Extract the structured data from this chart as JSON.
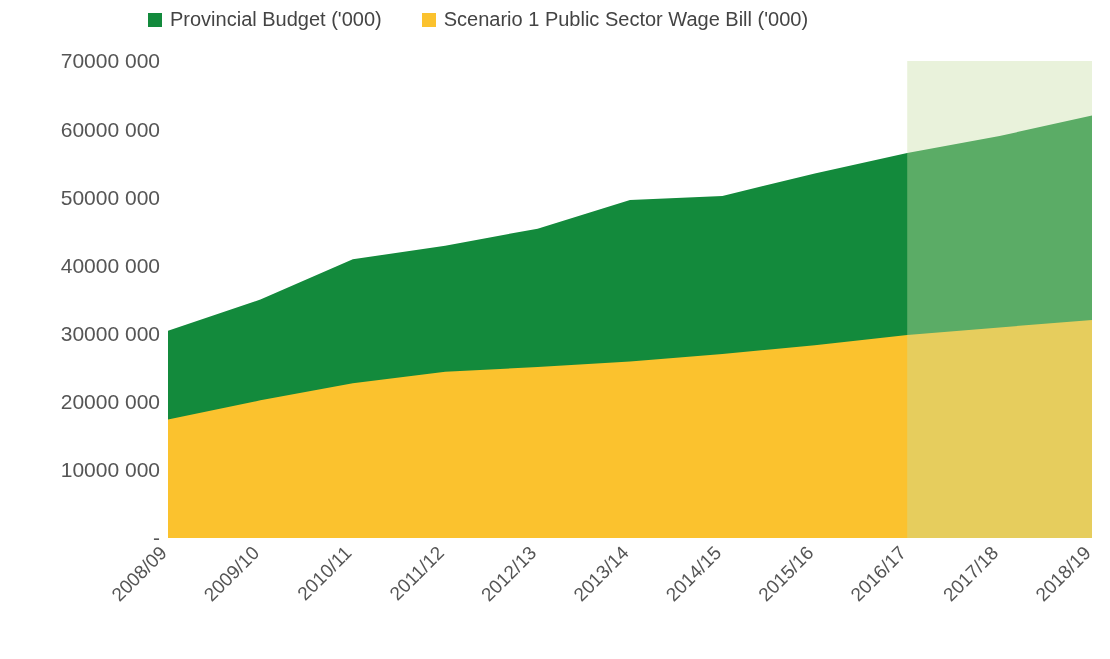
{
  "chart_data": {
    "type": "area",
    "categories": [
      "2008/09",
      "2009/10",
      "2010/11",
      "2011/12",
      "2012/13",
      "2013/14",
      "2014/15",
      "2015/16",
      "2016/17",
      "2017/18",
      "2018/19"
    ],
    "series": [
      {
        "name": "Provincial Budget  ('000)",
        "color": "#138a3c",
        "values": [
          30400000,
          35000000,
          40900000,
          42900000,
          45400000,
          49600000,
          50200000,
          53500000,
          56500000,
          59000000,
          62000000
        ]
      },
      {
        "name": "Scenario 1 Public Sector Wage Bill ('000)",
        "color": "#fbc22e",
        "values": [
          17400000,
          20200000,
          22700000,
          24400000,
          25100000,
          25900000,
          27000000,
          28300000,
          29800000,
          30900000,
          32000000
        ]
      }
    ],
    "ylim": [
      0,
      70000000
    ],
    "yticks": [
      {
        "value": 0,
        "label": "-"
      },
      {
        "value": 10000000,
        "label": "10000 000"
      },
      {
        "value": 20000000,
        "label": "20000 000"
      },
      {
        "value": 30000000,
        "label": "30000 000"
      },
      {
        "value": 40000000,
        "label": "40000 000"
      },
      {
        "value": 50000000,
        "label": "50000 000"
      },
      {
        "value": 60000000,
        "label": "60000 000"
      },
      {
        "value": 70000000,
        "label": "70000 000"
      }
    ],
    "bands": [
      {
        "axis": "x",
        "from": "2016/17",
        "to": "2018/19",
        "color": "#c9dfa6"
      }
    ],
    "grid": false,
    "legend": "top"
  }
}
